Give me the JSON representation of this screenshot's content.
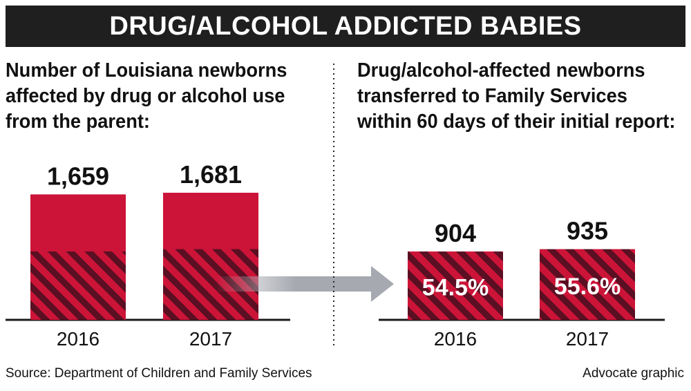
{
  "header": {
    "title": "DRUG/ALCOHOL ADDICTED BABIES"
  },
  "colors": {
    "bar": "#cc1438",
    "hatch": "#5a0f22",
    "baseline": "#1a1a1a",
    "arrow": "#a6a9b0",
    "banner": "#1f1f1f"
  },
  "chart_data": [
    {
      "type": "bar",
      "title_lines": [
        "Number of Louisiana newborns",
        "affected by drug or alcohol use",
        "from the parent:"
      ],
      "categories": [
        "2016",
        "2017"
      ],
      "values": [
        1659,
        1681
      ],
      "value_labels": [
        "1,659",
        "1,681"
      ],
      "hatched_values": [
        904,
        935
      ]
    },
    {
      "type": "bar",
      "title_lines": [
        "Drug/alcohol-affected newborns",
        "transferred to Family Services",
        "within 60 days of their initial report:"
      ],
      "categories": [
        "2016",
        "2017"
      ],
      "values": [
        904,
        935
      ],
      "value_labels": [
        "904",
        "935"
      ],
      "percent_labels": [
        "54.5%",
        "55.6%"
      ]
    }
  ],
  "footer": {
    "source": "Source: Department of Children and Family Services",
    "credit": "Advocate graphic"
  }
}
